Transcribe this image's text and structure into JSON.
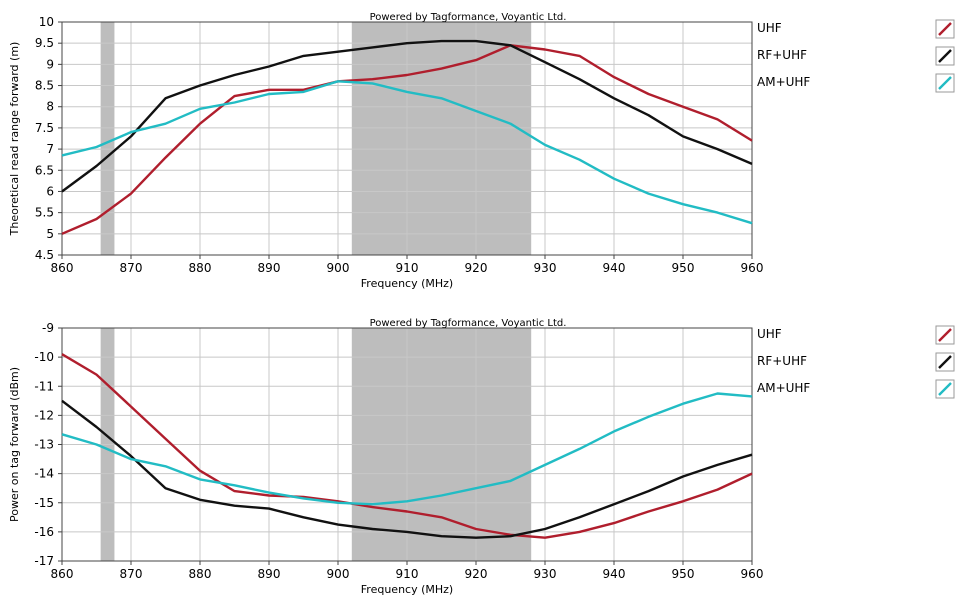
{
  "colors": {
    "UHF": "#b01e2d",
    "RF+UHF": "#111111",
    "AM+UHF": "#22bcc4",
    "band": "#bdbdbd",
    "grid": "#c8c8c8",
    "frame": "#444444"
  },
  "chart_data": [
    {
      "type": "line",
      "watermark": "Powered by Tagformance, Voyantic Ltd.",
      "xlabel": "Frequency (MHz)",
      "ylabel": "Theoretical read range forward (m)",
      "xlim": [
        860,
        960
      ],
      "ylim": [
        4.5,
        10
      ],
      "x_ticks": [
        "860",
        "870",
        "880",
        "890",
        "900",
        "910",
        "920",
        "930",
        "940",
        "950",
        "960"
      ],
      "y_ticks": [
        "10",
        "9.5",
        "9",
        "8.5",
        "8",
        "7.5",
        "7",
        "6.5",
        "6",
        "5.5",
        "5",
        "4.5"
      ],
      "grid": true,
      "legend_position": "right",
      "shaded_bands": [
        [
          865.6,
          867.6
        ],
        [
          902,
          928
        ]
      ],
      "x": [
        860,
        865,
        870,
        875,
        880,
        885,
        890,
        895,
        900,
        905,
        910,
        915,
        920,
        925,
        930,
        935,
        940,
        945,
        950,
        955,
        960
      ],
      "series": [
        {
          "name": "UHF",
          "values": [
            5.0,
            5.35,
            5.95,
            6.8,
            7.6,
            8.25,
            8.4,
            8.4,
            8.6,
            8.65,
            8.75,
            8.9,
            9.1,
            9.45,
            9.35,
            9.2,
            8.7,
            8.3,
            8.0,
            7.7,
            7.2
          ]
        },
        {
          "name": "RF+UHF",
          "values": [
            6.0,
            6.6,
            7.3,
            8.2,
            8.5,
            8.75,
            8.95,
            9.2,
            9.3,
            9.4,
            9.5,
            9.55,
            9.55,
            9.45,
            9.05,
            8.65,
            8.2,
            7.8,
            7.3,
            7.0,
            6.65
          ]
        },
        {
          "name": "AM+UHF",
          "values": [
            6.85,
            7.05,
            7.4,
            7.6,
            7.95,
            8.1,
            8.3,
            8.35,
            8.6,
            8.55,
            8.35,
            8.2,
            7.9,
            7.6,
            7.1,
            6.75,
            6.3,
            5.95,
            5.7,
            5.5,
            5.25
          ]
        }
      ]
    },
    {
      "type": "line",
      "watermark": "Powered by Tagformance, Voyantic Ltd.",
      "xlabel": "Frequency (MHz)",
      "ylabel": "Power on tag forward (dBm)",
      "xlim": [
        860,
        960
      ],
      "ylim": [
        -17,
        -9
      ],
      "x_ticks": [
        "860",
        "870",
        "880",
        "890",
        "900",
        "910",
        "920",
        "930",
        "940",
        "950",
        "960"
      ],
      "y_ticks": [
        "-9",
        "-10",
        "-11",
        "-12",
        "-13",
        "-14",
        "-15",
        "-16",
        "-17"
      ],
      "grid": true,
      "legend_position": "right",
      "shaded_bands": [
        [
          865.6,
          867.6
        ],
        [
          902,
          928
        ]
      ],
      "x": [
        860,
        865,
        870,
        875,
        880,
        885,
        890,
        895,
        900,
        905,
        910,
        915,
        920,
        925,
        930,
        935,
        940,
        945,
        950,
        955,
        960
      ],
      "series": [
        {
          "name": "UHF",
          "values": [
            -9.9,
            -10.6,
            -11.7,
            -12.8,
            -13.9,
            -14.6,
            -14.75,
            -14.8,
            -14.95,
            -15.15,
            -15.3,
            -15.5,
            -15.9,
            -16.1,
            -16.2,
            -16.0,
            -15.7,
            -15.3,
            -14.95,
            -14.55,
            -14.0
          ]
        },
        {
          "name": "RF+UHF",
          "values": [
            -11.5,
            -12.4,
            -13.4,
            -14.5,
            -14.9,
            -15.1,
            -15.2,
            -15.5,
            -15.75,
            -15.9,
            -16.0,
            -16.15,
            -16.2,
            -16.15,
            -15.9,
            -15.5,
            -15.05,
            -14.6,
            -14.1,
            -13.7,
            -13.35
          ]
        },
        {
          "name": "AM+UHF",
          "values": [
            -12.65,
            -13.0,
            -13.5,
            -13.75,
            -14.2,
            -14.4,
            -14.65,
            -14.85,
            -15.0,
            -15.05,
            -14.95,
            -14.75,
            -14.5,
            -14.25,
            -13.7,
            -13.15,
            -12.55,
            -12.05,
            -11.6,
            -11.25,
            -11.35
          ]
        }
      ]
    }
  ]
}
